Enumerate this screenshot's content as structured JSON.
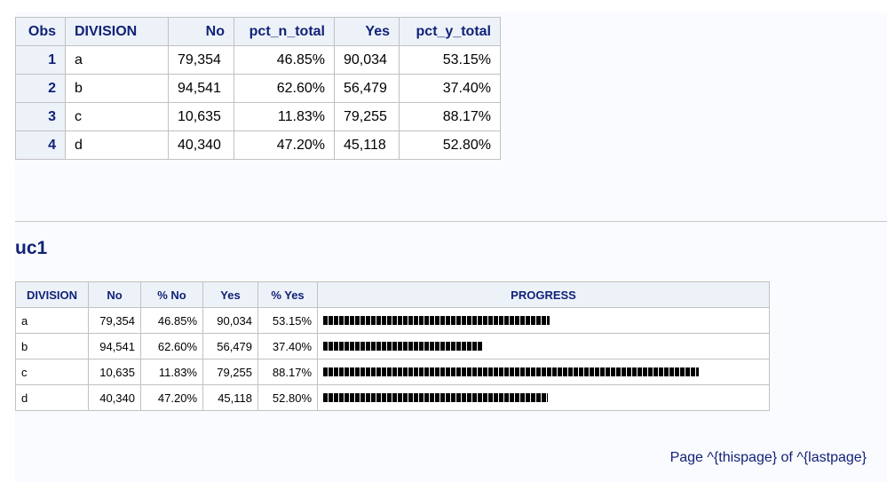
{
  "table1": {
    "headers": [
      "Obs",
      "DIVISION",
      "No",
      "pct_n_total",
      "Yes",
      "pct_y_total"
    ],
    "rows": [
      [
        "1",
        "a",
        "79,354",
        "46.85%",
        "90,034",
        "53.15%"
      ],
      [
        "2",
        "b",
        "94,541",
        "62.60%",
        "56,479",
        "37.40%"
      ],
      [
        "3",
        "c",
        "10,635",
        "11.83%",
        "79,255",
        "88.17%"
      ],
      [
        "4",
        "d",
        "40,340",
        "47.20%",
        "45,118",
        "52.80%"
      ]
    ]
  },
  "title": "uc1",
  "table2": {
    "headers": [
      "DIVISION",
      "No",
      "% No",
      "Yes",
      "% Yes",
      "PROGRESS"
    ],
    "rows": [
      {
        "division": "a",
        "no": "79,354",
        "pct_no": "46.85%",
        "yes": "90,034",
        "pct_yes": "53.15%",
        "progress": 0.5315
      },
      {
        "division": "b",
        "no": "94,541",
        "pct_no": "62.60%",
        "yes": "56,479",
        "pct_yes": "37.40%",
        "progress": 0.374
      },
      {
        "division": "c",
        "no": "10,635",
        "pct_no": "11.83%",
        "yes": "79,255",
        "pct_yes": "88.17%",
        "progress": 0.8817
      },
      {
        "division": "d",
        "no": "40,340",
        "pct_no": "47.20%",
        "yes": "45,118",
        "pct_yes": "52.80%",
        "progress": 0.528
      }
    ]
  },
  "footer": "Page ^{thispage} of ^{lastpage}",
  "colors": {
    "header_bg": "#edf2f9",
    "header_text": "#112277",
    "bar": "#000000"
  }
}
